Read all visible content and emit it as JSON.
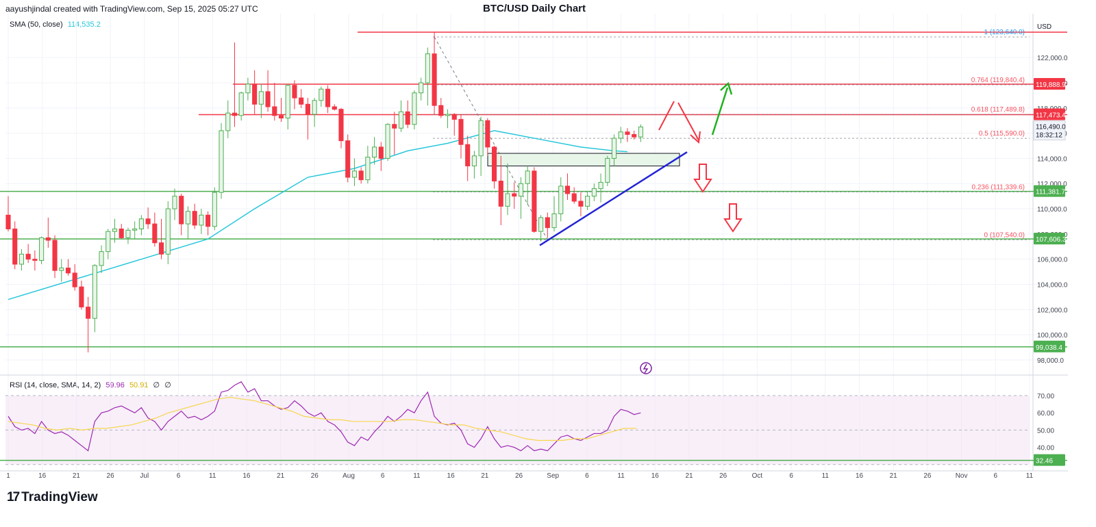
{
  "header": {
    "attribution": "aayushjindal created with TradingView.com, Sep 15, 2025 05:27 UTC",
    "title": "BTC/USD Daily Chart",
    "currency": "USD",
    "sma_label": "SMA (50, close)",
    "sma_value": "114,535.2",
    "rsi_label": "RSI (14, close, SMA, 14, 2)",
    "rsi_value": "59.96",
    "rsi_sma_value": "50.91",
    "rsi_extra1": "∅",
    "rsi_extra2": "∅"
  },
  "logo": {
    "mark": "17",
    "text": "TradingView"
  },
  "colors": {
    "up": "#4caf50",
    "up_fill": "#e8f5e9",
    "down": "#f23645",
    "sma": "#26c6da",
    "rsi": "#9c27b0",
    "rsi_sma": "#f7d64c",
    "support": "#4caf50",
    "resistance": "#f23645",
    "trend": "#2323d6",
    "fib": "#2196f3"
  },
  "chart_data": {
    "type": "candlestick",
    "title": "BTC/USD Daily Chart",
    "y_axis": {
      "ticks": [
        "98,000.0",
        "100,000.0",
        "102,000.0",
        "104,000.0",
        "106,000.0",
        "108,000.0",
        "110,000.0",
        "112,000.0",
        "114,000.0",
        "116,000.0",
        "118,000.0",
        "120,000.0",
        "122,000.0"
      ]
    },
    "x_axis": {
      "ticks": [
        "1",
        "16",
        "21",
        "26",
        "Jul",
        "6",
        "11",
        "16",
        "21",
        "26",
        "Aug",
        "6",
        "11",
        "16",
        "21",
        "26",
        "Sep",
        "6",
        "11",
        "16",
        "21",
        "26",
        "Oct",
        "6",
        "11",
        "16",
        "21",
        "26",
        "Nov",
        "6",
        "11"
      ]
    },
    "candles": [
      [
        109500,
        111000,
        108200,
        108400
      ],
      [
        108400,
        109000,
        105200,
        105600
      ],
      [
        105600,
        106800,
        105100,
        106400
      ],
      [
        106400,
        107200,
        105700,
        106000
      ],
      [
        106000,
        106700,
        105100,
        105900
      ],
      [
        105900,
        107800,
        105600,
        107700
      ],
      [
        107700,
        109300,
        106900,
        107500
      ],
      [
        107500,
        107900,
        104500,
        105100
      ],
      [
        105100,
        106000,
        104200,
        105300
      ],
      [
        105300,
        106000,
        104700,
        104900
      ],
      [
        104900,
        105600,
        103500,
        103800
      ],
      [
        103800,
        104300,
        102000,
        102200
      ],
      [
        102200,
        103000,
        98600,
        101300
      ],
      [
        101300,
        105600,
        100200,
        105500
      ],
      [
        105500,
        107100,
        104900,
        106600
      ],
      [
        106600,
        108400,
        106000,
        108200
      ],
      [
        108200,
        109200,
        107300,
        108400
      ],
      [
        108400,
        108800,
        107600,
        107700
      ],
      [
        107700,
        108500,
        107200,
        108300
      ],
      [
        108300,
        109000,
        107600,
        108400
      ],
      [
        108400,
        109500,
        107900,
        109200
      ],
      [
        109200,
        110100,
        108400,
        108800
      ],
      [
        108800,
        109700,
        107000,
        107300
      ],
      [
        107300,
        109200,
        106000,
        106400
      ],
      [
        106400,
        110600,
        105600,
        110000
      ],
      [
        110000,
        111600,
        109100,
        111000
      ],
      [
        111000,
        111200,
        107900,
        108800
      ],
      [
        108800,
        110200,
        107600,
        109800
      ],
      [
        109800,
        110400,
        108400,
        108700
      ],
      [
        108700,
        110000,
        108000,
        109500
      ],
      [
        109500,
        109800,
        107900,
        108600
      ],
      [
        108600,
        111700,
        108300,
        111300
      ],
      [
        111300,
        116800,
        110800,
        116200
      ],
      [
        116200,
        118600,
        115600,
        117600
      ],
      [
        117600,
        123200,
        116500,
        117400
      ],
      [
        117400,
        119300,
        117000,
        119200
      ],
      [
        119200,
        120400,
        118600,
        119900
      ],
      [
        119900,
        121000,
        117500,
        118300
      ],
      [
        118300,
        119900,
        117200,
        119300
      ],
      [
        119300,
        121000,
        117700,
        118100
      ],
      [
        118100,
        120000,
        117000,
        117400
      ],
      [
        117400,
        118800,
        116900,
        117200
      ],
      [
        117200,
        119900,
        116300,
        119800
      ],
      [
        119800,
        120200,
        117900,
        118800
      ],
      [
        118800,
        119500,
        118000,
        118300
      ],
      [
        118300,
        118800,
        115500,
        117500
      ],
      [
        117500,
        118800,
        116500,
        118600
      ],
      [
        118600,
        119700,
        118100,
        119500
      ],
      [
        119500,
        119800,
        117600,
        118100
      ],
      [
        118100,
        118300,
        117800,
        117900
      ],
      [
        117900,
        118000,
        114800,
        115400
      ],
      [
        115400,
        115900,
        112100,
        112500
      ],
      [
        112500,
        114000,
        111800,
        113000
      ],
      [
        113000,
        113300,
        112000,
        112300
      ],
      [
        112300,
        115000,
        112000,
        114100
      ],
      [
        114100,
        115700,
        113500,
        114900
      ],
      [
        114900,
        115300,
        113000,
        114000
      ],
      [
        114000,
        116800,
        113800,
        116700
      ],
      [
        116700,
        117700,
        114300,
        116400
      ],
      [
        116400,
        118600,
        116100,
        117700
      ],
      [
        117700,
        118600,
        116400,
        116700
      ],
      [
        116700,
        119400,
        116300,
        119200
      ],
      [
        119200,
        120400,
        118600,
        120000
      ],
      [
        120000,
        122800,
        118200,
        122300
      ],
      [
        122300,
        124000,
        117500,
        118200
      ],
      [
        118200,
        118800,
        117200,
        117400
      ],
      [
        117400,
        117900,
        116400,
        117500
      ],
      [
        117500,
        117600,
        115800,
        117100
      ],
      [
        117100,
        117500,
        114000,
        115100
      ],
      [
        115100,
        115800,
        112200,
        113400
      ],
      [
        113400,
        114600,
        112400,
        114200
      ],
      [
        114200,
        117300,
        112600,
        117000
      ],
      [
        117000,
        117200,
        114200,
        114900
      ],
      [
        114900,
        115000,
        111600,
        112200
      ],
      [
        112200,
        114200,
        108700,
        110200
      ],
      [
        110200,
        113600,
        109500,
        111200
      ],
      [
        111200,
        112100,
        110000,
        111000
      ],
      [
        111000,
        112500,
        109200,
        112000
      ],
      [
        112000,
        113400,
        110300,
        113000
      ],
      [
        113000,
        113300,
        108100,
        108200
      ],
      [
        108200,
        109500,
        107400,
        109300
      ],
      [
        109300,
        109700,
        107700,
        108500
      ],
      [
        108500,
        111000,
        108200,
        109600
      ],
      [
        109600,
        112500,
        109000,
        111800
      ],
      [
        111800,
        112800,
        110700,
        111200
      ],
      [
        111200,
        111700,
        110400,
        110600
      ],
      [
        110600,
        111300,
        109400,
        110200
      ],
      [
        110200,
        111400,
        109900,
        111000
      ],
      [
        111000,
        112000,
        110600,
        111600
      ],
      [
        111600,
        112800,
        110500,
        112100
      ],
      [
        112100,
        114200,
        111800,
        114000
      ],
      [
        114000,
        115900,
        113400,
        115600
      ],
      [
        115600,
        116500,
        115200,
        116100
      ],
      [
        116100,
        116400,
        115300,
        115900
      ],
      [
        115900,
        116200,
        115500,
        115700
      ],
      [
        115700,
        116700,
        115300,
        116500
      ]
    ],
    "sma50": [
      [
        0,
        102800
      ],
      [
        20,
        106000
      ],
      [
        30,
        107600
      ],
      [
        37,
        110000
      ],
      [
        45,
        112500
      ],
      [
        52,
        113200
      ],
      [
        60,
        114600
      ],
      [
        66,
        115200
      ],
      [
        73,
        116200
      ],
      [
        80,
        115500
      ],
      [
        86,
        114900
      ],
      [
        91,
        114600
      ],
      [
        93,
        114535
      ]
    ],
    "support_lines": [
      {
        "price": "111,381.7",
        "value": 111381.7
      },
      {
        "price": "107,606.3",
        "value": 107606.3
      },
      {
        "price": "99,038.4",
        "value": 99038.4
      }
    ],
    "resistance_lines": [
      {
        "price": "119,888.9",
        "value": 119888.9
      },
      {
        "price": "117,473.4",
        "value": 117473.4
      }
    ],
    "last_price": {
      "price": "116,490.0",
      "countdown": "18:32:12",
      "value": 116490
    },
    "fib_levels": [
      {
        "label": "1 (123,640.0)",
        "value": 123640
      },
      {
        "label": "0.764 (119,840.4)",
        "value": 119840.4
      },
      {
        "label": "0.618 (117,489.8)",
        "value": 117489.8
      },
      {
        "label": "0.5 (115,590.0)",
        "value": 115590
      },
      {
        "label": "0.236 (111,339.6)",
        "value": 111339.6
      },
      {
        "label": "0 (107,540.0)",
        "value": 107540
      }
    ],
    "consolidation_box": {
      "from_idx": 69,
      "to_idx": 98,
      "low": 113400,
      "high": 114400
    },
    "trendline": [
      {
        "idx": 77,
        "value": 107500
      },
      {
        "idx": 98,
        "value": 114300
      }
    ],
    "rsi": {
      "ticks": [
        "70.00",
        "60.00",
        "50.00",
        "40.00",
        "30.00"
      ],
      "band": [
        30,
        70
      ],
      "support_line": {
        "price": "32.46",
        "value": 32.46
      },
      "values": [
        58,
        52,
        50,
        51,
        48,
        55,
        50,
        48,
        49,
        47,
        44,
        41,
        38,
        55,
        60,
        61,
        63,
        64,
        62,
        60,
        63,
        57,
        55,
        50,
        55,
        58,
        61,
        57,
        58,
        56,
        58,
        61,
        72,
        73,
        76,
        78,
        72,
        74,
        67,
        67,
        64,
        62,
        63,
        67,
        64,
        60,
        58,
        60,
        55,
        53,
        49,
        43,
        41,
        46,
        44,
        49,
        53,
        58,
        55,
        58,
        62,
        60,
        67,
        72,
        58,
        54,
        53,
        54,
        50,
        42,
        40,
        45,
        52,
        45,
        40,
        41,
        40,
        38,
        41,
        38,
        39,
        38,
        42,
        46,
        47,
        45,
        44,
        46,
        48,
        48,
        50,
        58,
        62,
        61,
        59,
        60
      ],
      "sma": [
        55,
        54,
        53,
        51,
        50,
        51,
        50,
        51,
        51,
        52,
        53,
        55,
        57,
        60,
        62,
        64,
        66,
        68,
        69,
        68,
        67,
        65,
        63,
        61,
        58,
        57,
        56,
        56,
        55,
        55,
        55,
        55,
        56,
        56,
        55,
        54,
        53,
        53,
        51,
        50,
        49,
        47,
        45,
        44,
        44,
        44,
        45,
        45,
        47,
        49,
        51,
        51
      ]
    }
  }
}
